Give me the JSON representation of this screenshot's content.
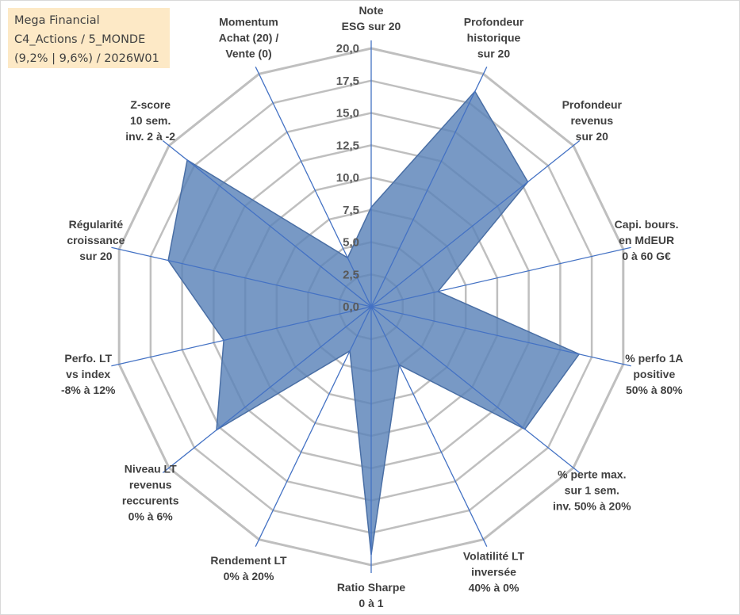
{
  "title_box": {
    "lines": [
      "Mega Financial",
      "C4_Actions / 5_MONDE",
      "(9,2% | 9,6%) / 2026W01"
    ]
  },
  "colors": {
    "grid": "#bfbfbf",
    "spoke": "#4472c4",
    "fill": "#5a82b8",
    "title_bg": "#fde9c6"
  },
  "chart_data": {
    "type": "radar",
    "title": "Mega Financial C4_Actions / 5_MONDE (9,2% | 9,6%) / 2026W01",
    "rmin": 0,
    "rmax": 20,
    "ticks": [
      "0,0",
      "2,5",
      "5,0",
      "7,5",
      "10,0",
      "12,5",
      "15,0",
      "17,5",
      "20,0"
    ],
    "tick_values": [
      0,
      2.5,
      5,
      7.5,
      10,
      12.5,
      15,
      17.5,
      20
    ],
    "categories": [
      "Note ESG sur 20",
      "Profondeur historique sur 20",
      "Profondeur revenus sur 20",
      "Capi. bours. en MdEUR 0 à 60 G€",
      "% perfo 1A positive 50% à 80%",
      "% perte max. sur 1 sem. inv. 50% à 20%",
      "Volatilité LT inversée 40% à 0%",
      "Ratio Sharpe 0 à 1",
      "Rendement LT 0% à 20%",
      "Niveau LT revenus reccurents 0% à 6%",
      "Perfo. LT vs index -8% à 12%",
      "Régularité croissance sur 20",
      "Z-score 10 sem. inv. 2 à -2",
      "Momentum Achat (20) / Vente (0)"
    ],
    "category_label_lines": [
      [
        "Note",
        "ESG sur 20"
      ],
      [
        "Profondeur",
        "historique",
        "sur 20"
      ],
      [
        "Profondeur",
        "revenus",
        "sur 20"
      ],
      [
        "Capi. bours.",
        "en MdEUR",
        "0 à 60 G€"
      ],
      [
        "% perfo 1A",
        "positive",
        "50% à 80%"
      ],
      [
        "% perte max.",
        "sur 1 sem.",
        "inv. 50% à 20%"
      ],
      [
        "Volatilité LT",
        "inversée",
        "40% à 0%"
      ],
      [
        "Ratio Sharpe",
        "0 à 1"
      ],
      [
        "Rendement LT",
        "0% à 20%"
      ],
      [
        "Niveau LT",
        "revenus",
        "reccurents",
        "0% à 6%"
      ],
      [
        "Perfo. LT",
        "vs index",
        "-8% à 12%"
      ],
      [
        "Régularité",
        "croissance",
        "sur 20"
      ],
      [
        "Z-score",
        "10 sem.",
        "inv. 2 à -2"
      ],
      [
        "Momentum",
        "Achat (20) /",
        "Vente (0)"
      ]
    ],
    "series": [
      {
        "name": "Mega Financial",
        "values": [
          7.7,
          18.5,
          15.5,
          5.3,
          16.5,
          15.2,
          5.0,
          19.2,
          3.8,
          15.3,
          11.7,
          16.1,
          18.2,
          4.2
        ]
      }
    ]
  }
}
